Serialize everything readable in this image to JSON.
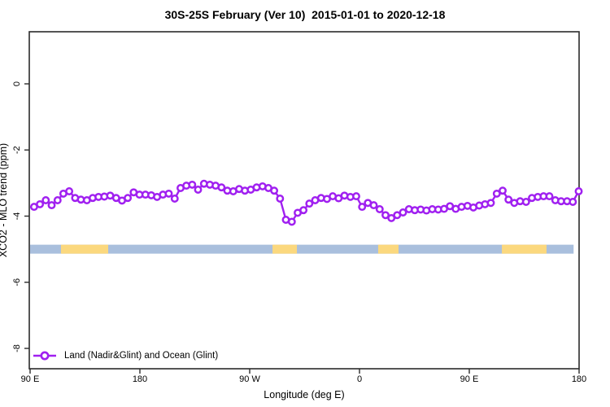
{
  "title": "30S-25S February (Ver 10)  2015-01-01 to 2020-12-18",
  "axes": {
    "x_label": "Longitude (deg E)",
    "y_label": "XCO2 - MLO trend (ppm)"
  },
  "legend": {
    "label": "Land (Nadir&Glint) and Ocean (Glint)",
    "position": "bottomleft"
  },
  "colors": {
    "series": "#A020F0",
    "marker_fill": "#FFFFFF",
    "ocean_band": "#A9BFDD",
    "land_band": "#FBD87E",
    "axis": "#2B2B2B",
    "text": "#000000"
  },
  "chart_data": {
    "type": "line",
    "title": "30S-25S February (Ver 10)  2015-01-01 to 2020-12-18",
    "xlabel": "Longitude (deg E)",
    "ylabel": "XCO2 - MLO trend (ppm)",
    "xlim": [
      90,
      540
    ],
    "ylim": [
      -8.6,
      1.6
    ],
    "grid": false,
    "x_tick_values": [
      90,
      180,
      270,
      360,
      450,
      540
    ],
    "x_tick_labels": [
      "90 E",
      "180",
      "90 W",
      "0",
      "90 E",
      "180"
    ],
    "y_tick_values": [
      0,
      -2,
      -4,
      -6,
      -8
    ],
    "y_tick_labels": [
      "0",
      "-2",
      "-4",
      "-6",
      "-8"
    ],
    "series": [
      {
        "name": "Land (Nadir&Glint) and Ocean (Glint)",
        "marker": "open-circle",
        "x_start": 93.3,
        "x_step": 4.8,
        "values": [
          -3.72,
          -3.64,
          -3.52,
          -3.67,
          -3.52,
          -3.32,
          -3.25,
          -3.45,
          -3.5,
          -3.52,
          -3.45,
          -3.42,
          -3.41,
          -3.38,
          -3.45,
          -3.53,
          -3.45,
          -3.28,
          -3.35,
          -3.35,
          -3.37,
          -3.42,
          -3.35,
          -3.32,
          -3.47,
          -3.15,
          -3.08,
          -3.05,
          -3.2,
          -3.02,
          -3.05,
          -3.08,
          -3.13,
          -3.23,
          -3.25,
          -3.18,
          -3.23,
          -3.2,
          -3.13,
          -3.1,
          -3.15,
          -3.23,
          -3.47,
          -4.11,
          -4.17,
          -3.9,
          -3.82,
          -3.62,
          -3.52,
          -3.45,
          -3.48,
          -3.4,
          -3.46,
          -3.38,
          -3.42,
          -3.4,
          -3.72,
          -3.6,
          -3.67,
          -3.79,
          -3.97,
          -4.06,
          -3.97,
          -3.89,
          -3.79,
          -3.82,
          -3.8,
          -3.83,
          -3.79,
          -3.8,
          -3.78,
          -3.7,
          -3.78,
          -3.72,
          -3.69,
          -3.74,
          -3.68,
          -3.64,
          -3.6,
          -3.32,
          -3.23,
          -3.5,
          -3.6,
          -3.55,
          -3.57,
          -3.45,
          -3.42,
          -3.4,
          -3.4,
          -3.52,
          -3.55,
          -3.55,
          -3.57,
          -3.25
        ]
      }
    ],
    "surface_band": {
      "description": "ocean/land indicator strip drawn at y = -5",
      "y_value": -5,
      "range": [
        90,
        535.5
      ],
      "land_segments": [
        [
          115.3,
          154.0
        ],
        [
          288.7,
          308.7
        ],
        [
          375.3,
          392.0
        ],
        [
          476.7,
          513.3
        ]
      ]
    }
  }
}
